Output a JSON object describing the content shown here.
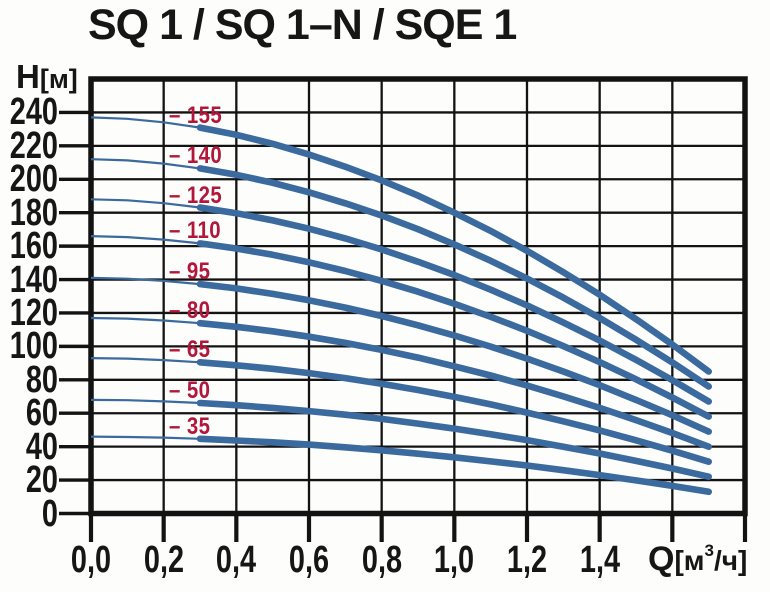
{
  "title": "SQ 1 / SQ 1–N / SQE 1",
  "y_axis": {
    "name": "H",
    "unit": "[м]",
    "tick_labels": [
      "240",
      "220",
      "200",
      "180",
      "160",
      "140",
      "120",
      "100",
      "80",
      "60",
      "40",
      "20",
      "0"
    ]
  },
  "x_axis": {
    "name": "Q",
    "unit_prefix": "[м",
    "unit_sup": "3",
    "unit_suffix": "/ч]",
    "tick_labels": [
      "0,0",
      "0,2",
      "0,4",
      "0,6",
      "0,8",
      "1,0",
      "1,2",
      "1,4"
    ]
  },
  "colors": {
    "curve": "#3b6a9f",
    "curve_label": "#b2163a",
    "grid": "#131313",
    "text": "#161616"
  },
  "chart_data": {
    "type": "line",
    "title": "SQ 1 / SQ 1–N / SQE 1",
    "xlabel": "Q [м³/ч]",
    "ylabel": "H [м]",
    "xlim": [
      0,
      1.8
    ],
    "ylim": [
      0,
      260
    ],
    "grid": true,
    "grid_step_x": 0.2,
    "grid_step_y": 20,
    "legend_position": "inline-left",
    "thick_stroke_from_x": 0.3,
    "x": [
      0,
      0.1,
      0.2,
      0.3,
      0.4,
      0.5,
      0.6,
      0.7,
      0.8,
      0.9,
      1.0,
      1.1,
      1.2,
      1.3,
      1.4,
      1.5,
      1.6,
      1.7
    ],
    "series": [
      {
        "name": "– 155",
        "values": [
          237,
          236.2,
          234.1,
          230.9,
          226.6,
          221.2,
          214.8,
          207.5,
          199.3,
          190.2,
          180,
          169.1,
          157.2,
          144.4,
          130.9,
          116.3,
          101.1,
          85
        ]
      },
      {
        "name": "– 140",
        "values": [
          212,
          211.3,
          209.4,
          206.5,
          202.7,
          197.9,
          192.2,
          185.6,
          178.3,
          170.1,
          161,
          151.2,
          140.6,
          129.2,
          117,
          104,
          90.4,
          76
        ]
      },
      {
        "name": "– 125",
        "values": [
          188,
          187.4,
          185.7,
          183.1,
          179.7,
          175.4,
          170.4,
          164.6,
          158,
          150.7,
          142.7,
          133.9,
          124.5,
          114.3,
          103.5,
          92,
          79.8,
          67
        ]
      },
      {
        "name": "– 110",
        "values": [
          166,
          165.4,
          163.9,
          161.6,
          158.6,
          154.8,
          150.3,
          145.1,
          139.2,
          132.7,
          125.5,
          117.7,
          109.3,
          100.2,
          90.6,
          80.3,
          69.4,
          58
        ]
      },
      {
        "name": "– 95",
        "values": [
          141,
          140.5,
          139.2,
          137.3,
          134.7,
          131.4,
          127.6,
          123.2,
          118.2,
          112.6,
          106.5,
          99.9,
          92.7,
          85,
          76.8,
          68,
          58.8,
          49
        ]
      },
      {
        "name": "– 80",
        "values": [
          117,
          116.6,
          115.5,
          113.9,
          111.7,
          109,
          105.8,
          102.1,
          97.9,
          93.3,
          88.1,
          82.6,
          76.6,
          70.1,
          63.2,
          55.9,
          48.2,
          40
        ]
      },
      {
        "name": "– 65",
        "values": [
          93,
          92.7,
          91.8,
          90.5,
          88.7,
          86.6,
          84,
          81,
          77.6,
          73.9,
          69.8,
          65.3,
          60.4,
          55.2,
          49.7,
          43.8,
          37.6,
          31
        ]
      },
      {
        "name": "– 50",
        "values": [
          68,
          67.8,
          67.1,
          66.1,
          64.8,
          63.2,
          61.3,
          59.1,
          56.6,
          53.8,
          50.8,
          47.4,
          43.9,
          40,
          35.9,
          31.5,
          26.9,
          22
        ]
      },
      {
        "name": "– 35",
        "values": [
          46,
          45.8,
          45.4,
          44.7,
          43.7,
          42.6,
          41.2,
          39.6,
          37.8,
          35.8,
          33.6,
          31.2,
          28.7,
          25.9,
          23,
          19.8,
          16.5,
          13
        ]
      }
    ]
  }
}
